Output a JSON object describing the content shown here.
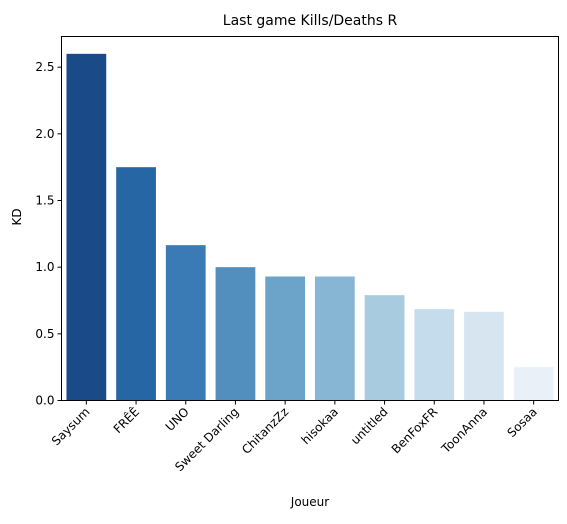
{
  "chart_data": {
    "type": "bar",
    "title": "Last game Kills/Deaths R",
    "xlabel": "Joueur",
    "ylabel": "KD",
    "categories": [
      "Saysum",
      "FRÊÊ",
      "UNO",
      "Sweet Darling",
      "ChitanzZz",
      "hisokaa",
      "untitled",
      "BenFoxFR",
      "ToonAnna",
      "Sosaa"
    ],
    "values": [
      2.6,
      1.75,
      1.165,
      1.0,
      0.93,
      0.93,
      0.79,
      0.685,
      0.665,
      0.25
    ],
    "colors": [
      "#1a4a87",
      "#2766a4",
      "#3a7bb6",
      "#538fbe",
      "#6ba4c8",
      "#86b6d3",
      "#a8cbe0",
      "#c4dcec",
      "#d7e5f1",
      "#e9f0f8"
    ],
    "yticks": [
      0.0,
      0.5,
      1.0,
      1.5,
      2.0,
      2.5
    ],
    "ylim": [
      0,
      2.73
    ],
    "grid": false,
    "legend": "none"
  }
}
